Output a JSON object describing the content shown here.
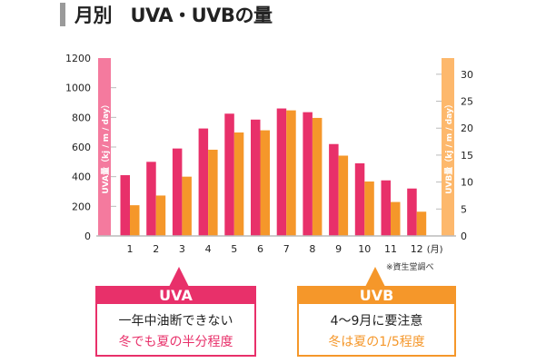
{
  "title": "月別　UVA・UVBの量",
  "colors": {
    "uva": "#e8306a",
    "uvb": "#f5972a",
    "uva_band": "#f47a9e",
    "uvb_band": "#fdb86c",
    "grid": "#bbbbbb"
  },
  "chart_data": {
    "type": "bar",
    "title": "月別　UVA・UVBの量",
    "categories": [
      "1",
      "2",
      "3",
      "4",
      "5",
      "6",
      "7",
      "8",
      "9",
      "10",
      "11",
      "12"
    ],
    "x_unit": "(月)",
    "series": [
      {
        "axis": "left",
        "values": [
          410,
          500,
          590,
          725,
          825,
          785,
          860,
          835,
          620,
          490,
          375,
          320
        ]
      },
      {
        "axis": "right",
        "values": [
          5.7,
          7.5,
          11.0,
          16.0,
          19.2,
          19.6,
          23.3,
          21.9,
          14.9,
          10.1,
          6.3,
          4.5
        ]
      }
    ],
    "ylabel_left": "UVA量（kj / m / day）",
    "ylabel_right": "UVB量（kj / m / day）",
    "ylim_left": [
      0,
      1200
    ],
    "yticks_left": [
      0,
      200,
      400,
      600,
      800,
      1000,
      1200
    ],
    "ylim_right": [
      0,
      33
    ],
    "yticks_right": [
      0,
      5,
      10,
      15,
      20,
      25,
      30
    ],
    "grid": false,
    "note": "※資生堂調べ"
  },
  "callouts": {
    "uva": {
      "label": "UVA",
      "line1": "一年中油断できない",
      "line2": "冬でも夏の半分程度"
    },
    "uvb": {
      "label": "UVB",
      "line1": "4〜9月に要注意",
      "line2": "冬は夏の1/5程度"
    }
  }
}
